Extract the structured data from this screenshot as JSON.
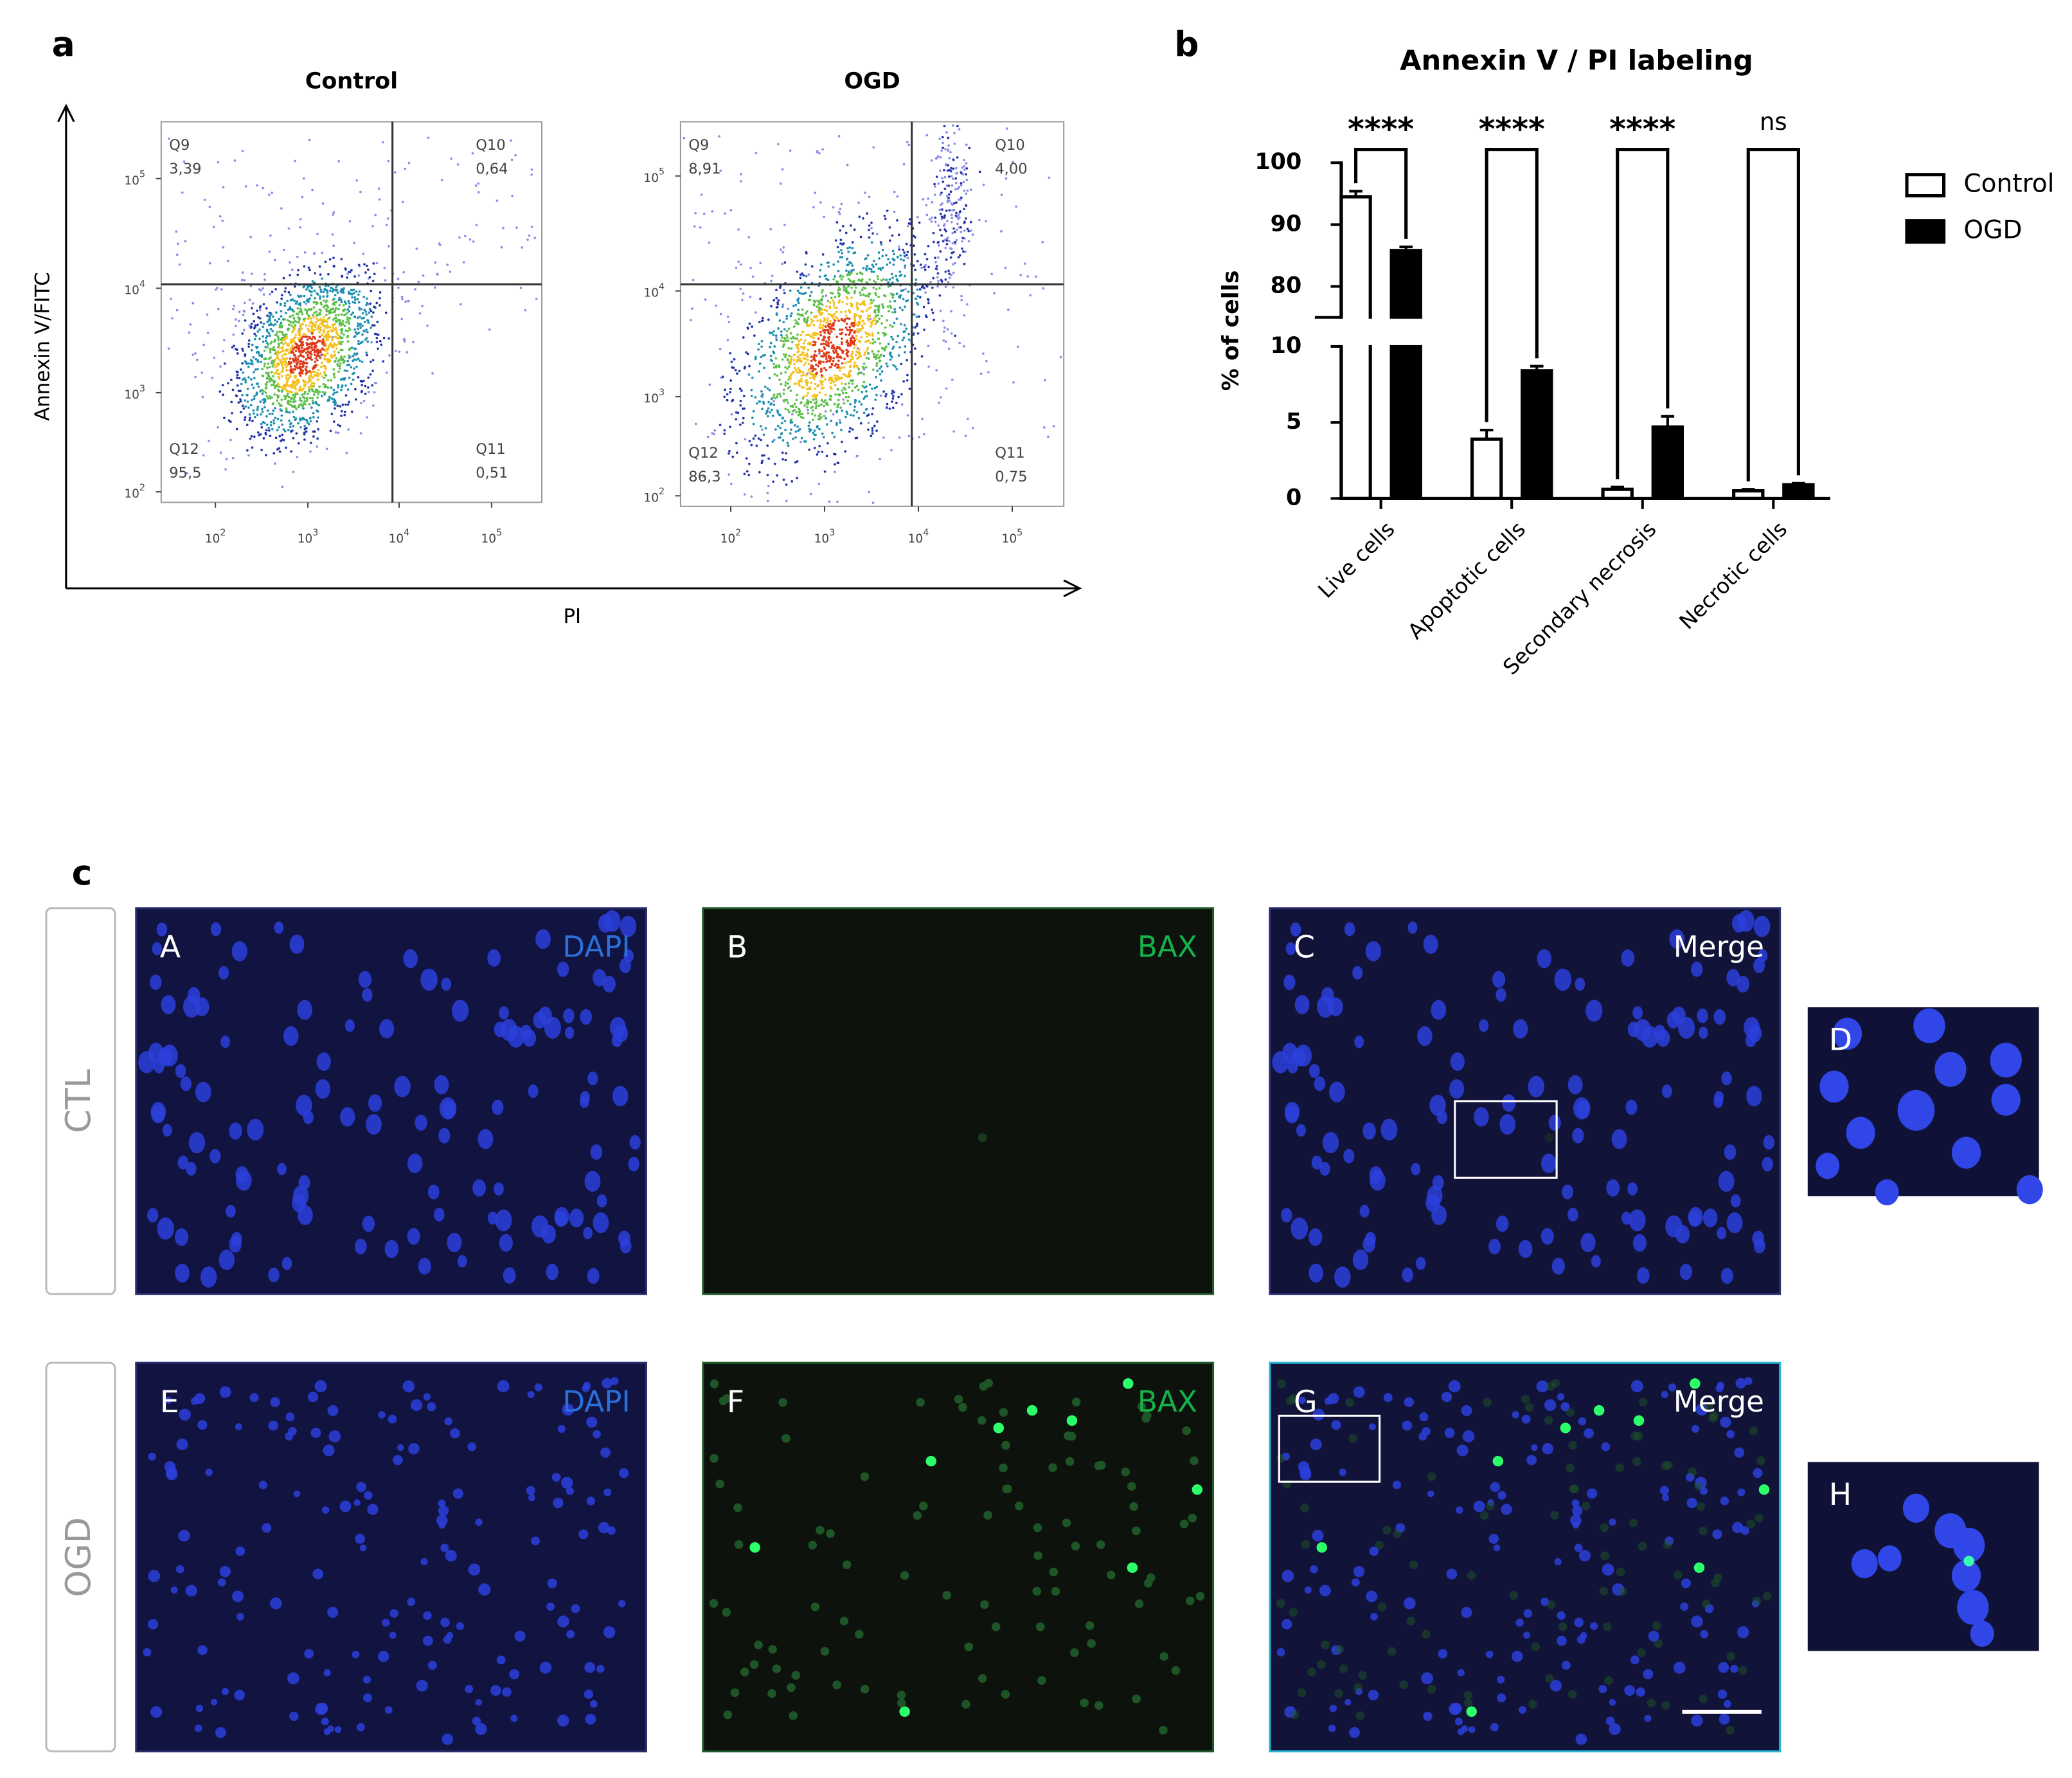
{
  "panel_labels": [
    "a",
    "b",
    "c"
  ],
  "panel_a": {
    "y_axis_label": "Annexin V/FITC",
    "x_axis_label": "PI",
    "tick_labels": [
      {
        "base": "10",
        "exponent": "2"
      },
      {
        "base": "10",
        "exponent": "3"
      },
      {
        "base": "10",
        "exponent": "4"
      },
      {
        "base": "10",
        "exponent": "5"
      }
    ],
    "plots": [
      {
        "title": "Control",
        "quadrants": [
          {
            "name": "Q9",
            "value": "3,39"
          },
          {
            "name": "Q10",
            "value": "0,64"
          },
          {
            "name": "Q12",
            "value": "95,5"
          },
          {
            "name": "Q11",
            "value": "0,51"
          }
        ]
      },
      {
        "title": "OGD",
        "quadrants": [
          {
            "name": "Q9",
            "value": "8,91"
          },
          {
            "name": "Q10",
            "value": "4,00"
          },
          {
            "name": "Q12",
            "value": "86,3"
          },
          {
            "name": "Q11",
            "value": "0,75"
          }
        ]
      }
    ]
  },
  "chart_data": {
    "type": "bar",
    "title": "Annexin V / PI labeling",
    "y_label": "% of cells",
    "categories": [
      "Live cells",
      "Apoptotic cells",
      "Secondary necrosis",
      "Necrotic cells"
    ],
    "series": [
      {
        "name": "Control",
        "color": "#ffffff",
        "values": [
          94.5,
          3.9,
          0.6,
          0.5
        ],
        "errors": [
          0.9,
          0.6,
          0.15,
          0.1
        ]
      },
      {
        "name": "OGD",
        "color": "#000000",
        "values": [
          85.8,
          8.4,
          4.7,
          0.9
        ],
        "errors": [
          0.6,
          0.3,
          0.7,
          0.1
        ]
      }
    ],
    "ylim": [
      0,
      100
    ],
    "axis_break": [
      10,
      75
    ],
    "yticks": [
      0,
      5,
      10,
      80,
      90,
      100
    ],
    "significance": [
      "****",
      "****",
      "****",
      "ns"
    ],
    "legend": "right"
  },
  "panel_c": {
    "row_labels": [
      "CTL",
      "OGD"
    ],
    "panels": [
      {
        "letter": "A",
        "channel": "DAPI"
      },
      {
        "letter": "B",
        "channel": "BAX"
      },
      {
        "letter": "C",
        "channel": "Merge"
      },
      {
        "letter": "D"
      },
      {
        "letter": "E",
        "channel": "DAPI"
      },
      {
        "letter": "F",
        "channel": "BAX"
      },
      {
        "letter": "G",
        "channel": "Merge"
      },
      {
        "letter": "H"
      }
    ]
  }
}
